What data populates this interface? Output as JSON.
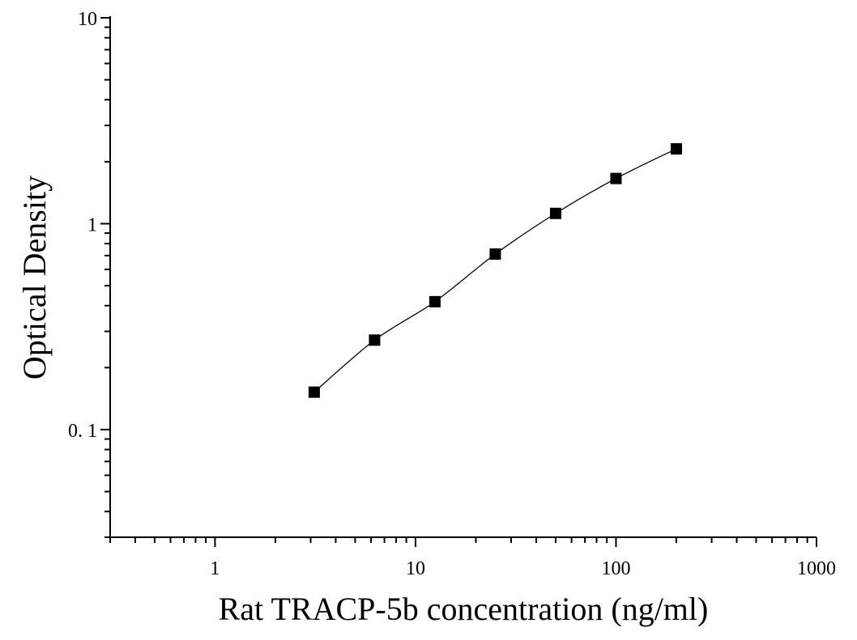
{
  "chart_data": {
    "type": "scatter",
    "title": "",
    "xlabel": "Rat TRACP-5b concentration (ng/ml)",
    "ylabel": "Optical Density",
    "x_scale": "log",
    "y_scale": "log",
    "xlim": [
      0.3,
      1000
    ],
    "ylim": [
      0.03,
      10
    ],
    "x_ticks": [
      1,
      10,
      100,
      1000
    ],
    "x_tick_labels": [
      "1",
      "10",
      "100",
      "1000"
    ],
    "y_ticks": [
      0.1,
      1,
      10
    ],
    "y_tick_labels": [
      "0. 1",
      "1",
      "10"
    ],
    "grid": false,
    "series": [
      {
        "marker": "square",
        "color": "#000000",
        "fit_line": true,
        "x": [
          3.125,
          6.25,
          12.5,
          25,
          50,
          100,
          200
        ],
        "y": [
          0.152,
          0.272,
          0.418,
          0.712,
          1.122,
          1.658,
          2.31
        ]
      }
    ]
  }
}
